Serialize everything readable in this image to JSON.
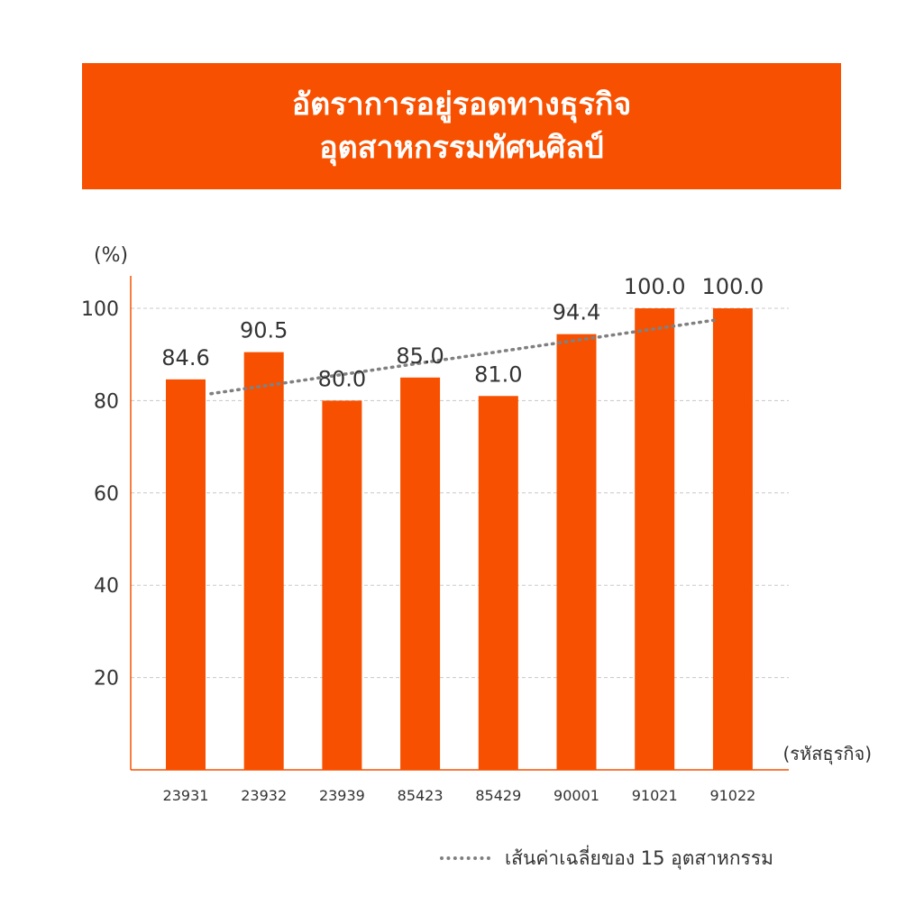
{
  "title": {
    "line1": "อัตราการอยู่รอดทางธุรกิจ",
    "line2": "อุตสาหกรรมทัศนศิลป์"
  },
  "colors": {
    "accent": "#f75000",
    "bar": "#f75000",
    "average_line": "#808080",
    "text": "#333333",
    "grid": "#c8c8c8"
  },
  "legend": {
    "average_label": "เส้นค่าเฉลี่ยของ 15 อุตสาหกรรม"
  },
  "chart_data": {
    "type": "bar",
    "ylabel": "(%)",
    "xlabel": "(รหัสธุรกิจ)",
    "ylim": [
      0,
      100
    ],
    "yticks": [
      20,
      40,
      60,
      80,
      100
    ],
    "grid": true,
    "categories": [
      "23931",
      "23932",
      "23939",
      "85423",
      "85429",
      "90001",
      "91021",
      "91022"
    ],
    "series": [
      {
        "type": "bar",
        "values": [
          84.6,
          90.5,
          80.0,
          85.0,
          81.0,
          94.4,
          100.0,
          100.0
        ],
        "data_labels": [
          "84.6",
          "90.5",
          "80.0",
          "85.0",
          "81.0",
          "94.4",
          "100.0",
          "100.0"
        ]
      },
      {
        "name": "เส้นค่าเฉลี่ยของ 15 อุตสาหกรรม",
        "type": "line",
        "style": "dotted",
        "x_start": "23931",
        "x_end": "91022",
        "y_start": 81.5,
        "y_end": 97.5
      }
    ],
    "legend_position": "bottom-right"
  }
}
